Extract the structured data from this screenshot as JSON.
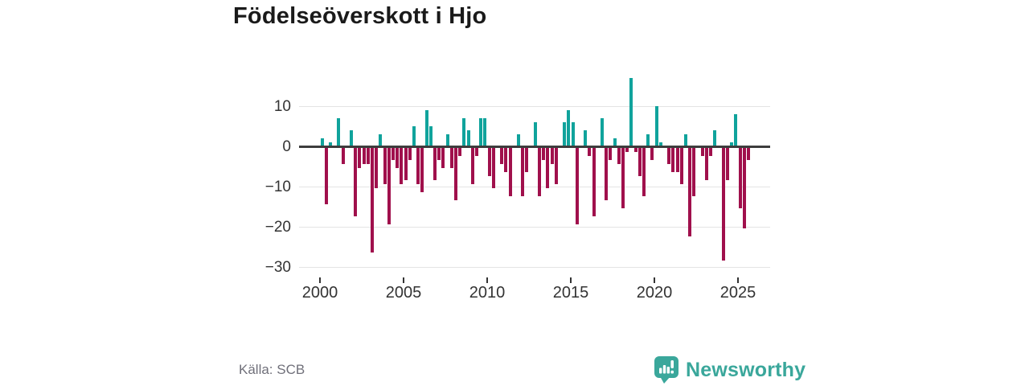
{
  "title": "Födelseöverskott i Hjo",
  "source": "Källa: SCB",
  "brand": {
    "name": "Newsworthy",
    "color": "#3aa79b"
  },
  "colors": {
    "positive_bar": "#10a39c",
    "negative_bar": "#a0104c",
    "zero_line": "#3d3d3d",
    "gridline": "#e4e4e4",
    "axis_text": "#333333",
    "source_text": "#70707a",
    "title_text": "#1a1a1a"
  },
  "chart_data": {
    "type": "bar",
    "title": "Födelseöverskott i Hjo",
    "xlabel": "",
    "ylabel": "",
    "frequency": "quarterly",
    "start_year": 2000,
    "end_period": "2025 Q3",
    "ylim": [
      -30,
      18
    ],
    "grid": "horizontal",
    "legend": "none",
    "y_ticks": [
      {
        "label": "10",
        "value": 10
      },
      {
        "label": "0",
        "value": 0
      },
      {
        "label": "−10",
        "value": -10
      },
      {
        "label": "−20",
        "value": -20
      },
      {
        "label": "−30",
        "value": -30
      }
    ],
    "x_ticks": [
      {
        "label": "2000",
        "year": 2000
      },
      {
        "label": "2005",
        "year": 2005
      },
      {
        "label": "2010",
        "year": 2010
      },
      {
        "label": "2015",
        "year": 2015
      },
      {
        "label": "2020",
        "year": 2020
      },
      {
        "label": "2025",
        "year": 2025
      }
    ],
    "values": [
      2,
      -14,
      1,
      0,
      7,
      -4,
      0,
      4,
      -17,
      -5,
      -4,
      -4,
      -26,
      -10,
      3,
      -9,
      -19,
      -3,
      -5,
      -9,
      -8,
      -3,
      5,
      -9,
      -11,
      9,
      5,
      -8,
      -3,
      -5,
      3,
      -5,
      -13,
      -2,
      7,
      4,
      -9,
      -2,
      7,
      7,
      -7,
      -10,
      0,
      -4,
      -6,
      -12,
      0,
      3,
      -12,
      -6,
      0,
      6,
      -12,
      -3,
      -10,
      -4,
      -9,
      0,
      6,
      9,
      6,
      -19,
      0,
      4,
      -2,
      -17,
      0,
      7,
      -13,
      -3,
      2,
      -4,
      -15,
      -1,
      17,
      -1,
      -7,
      -12,
      3,
      -3,
      10,
      1,
      0,
      -4,
      -6,
      -6,
      -9,
      3,
      -22,
      -12,
      0,
      -2,
      -8,
      -2,
      4,
      0,
      -28,
      -8,
      1,
      8,
      -15,
      -20,
      -3
    ]
  }
}
